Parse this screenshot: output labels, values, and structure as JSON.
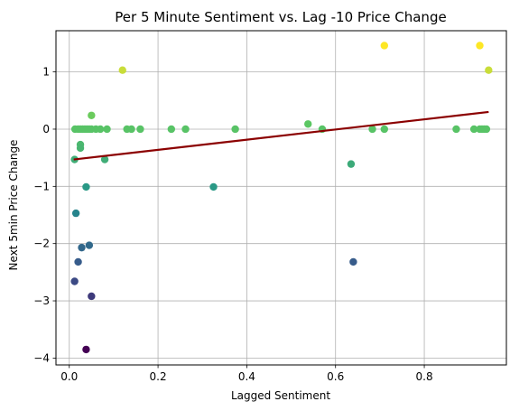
{
  "chart_data": {
    "type": "scatter",
    "title": "Per 5 Minute Sentiment vs. Lag -10 Price Change",
    "xlabel": "Lagged Sentiment",
    "ylabel": "Next 5min Price Change",
    "xlim": [
      -0.03,
      0.985
    ],
    "ylim": [
      -4.12,
      1.72
    ],
    "xticks": [
      0.0,
      0.2,
      0.4,
      0.6,
      0.8
    ],
    "xtick_labels": [
      "0.0",
      "0.2",
      "0.4",
      "0.6",
      "0.8"
    ],
    "yticks": [
      -4,
      -3,
      -2,
      -1,
      0,
      1
    ],
    "ytick_labels": [
      "−4",
      "−3",
      "−2",
      "−1",
      "0",
      "1"
    ],
    "grid": true,
    "colormap": "viridis",
    "points": [
      {
        "x": 0.013,
        "y": 0.0
      },
      {
        "x": 0.02,
        "y": 0.0
      },
      {
        "x": 0.025,
        "y": 0.0
      },
      {
        "x": 0.03,
        "y": 0.0
      },
      {
        "x": 0.035,
        "y": 0.0
      },
      {
        "x": 0.04,
        "y": 0.0
      },
      {
        "x": 0.045,
        "y": 0.0
      },
      {
        "x": 0.05,
        "y": 0.0
      },
      {
        "x": 0.06,
        "y": 0.0
      },
      {
        "x": 0.07,
        "y": 0.0
      },
      {
        "x": 0.085,
        "y": 0.0
      },
      {
        "x": 0.13,
        "y": 0.0
      },
      {
        "x": 0.14,
        "y": 0.0
      },
      {
        "x": 0.16,
        "y": 0.0
      },
      {
        "x": 0.23,
        "y": 0.0
      },
      {
        "x": 0.262,
        "y": 0.0
      },
      {
        "x": 0.374,
        "y": 0.0
      },
      {
        "x": 0.57,
        "y": 0.0
      },
      {
        "x": 0.683,
        "y": 0.0
      },
      {
        "x": 0.71,
        "y": 0.0
      },
      {
        "x": 0.872,
        "y": 0.0
      },
      {
        "x": 0.912,
        "y": 0.0
      },
      {
        "x": 0.925,
        "y": 0.0
      },
      {
        "x": 0.93,
        "y": 0.0
      },
      {
        "x": 0.935,
        "y": 0.0
      },
      {
        "x": 0.94,
        "y": 0.0
      },
      {
        "x": 0.05,
        "y": 0.24
      },
      {
        "x": 0.538,
        "y": 0.09
      },
      {
        "x": 0.025,
        "y": -0.27
      },
      {
        "x": 0.025,
        "y": -0.33
      },
      {
        "x": 0.08,
        "y": -0.53
      },
      {
        "x": 0.012,
        "y": -0.53
      },
      {
        "x": 0.635,
        "y": -0.61
      },
      {
        "x": 0.325,
        "y": -1.01
      },
      {
        "x": 0.038,
        "y": -1.01
      },
      {
        "x": 0.015,
        "y": -1.47
      },
      {
        "x": 0.028,
        "y": -2.07
      },
      {
        "x": 0.045,
        "y": -2.03
      },
      {
        "x": 0.02,
        "y": -2.32
      },
      {
        "x": 0.64,
        "y": -2.32
      },
      {
        "x": 0.012,
        "y": -2.66
      },
      {
        "x": 0.05,
        "y": -2.92
      },
      {
        "x": 0.038,
        "y": -3.85
      },
      {
        "x": 0.12,
        "y": 1.03
      },
      {
        "x": 0.945,
        "y": 1.03
      },
      {
        "x": 0.71,
        "y": 1.46
      },
      {
        "x": 0.925,
        "y": 1.46
      }
    ],
    "trendline": {
      "x": [
        0.01,
        0.945
      ],
      "y": [
        -0.53,
        0.3
      ],
      "color": "#8b0000"
    },
    "colors": {
      "grid": "#b0b0b0",
      "axis": "#000000"
    }
  }
}
